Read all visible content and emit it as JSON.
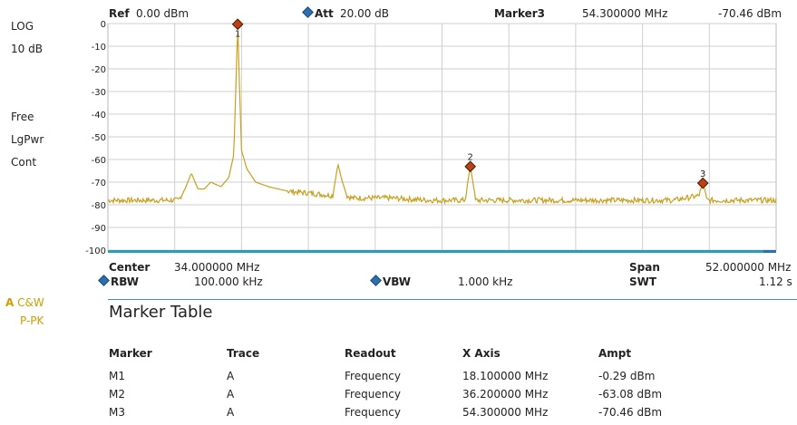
{
  "header": {
    "ref_label": "Ref",
    "ref_value": "0.00 dBm",
    "att_label": "Att",
    "att_value": "20.00 dB",
    "marker_label": "Marker3",
    "marker_freq": "54.300000 MHz",
    "marker_ampt": "-70.46 dBm"
  },
  "left_panel": {
    "scale": "LOG",
    "div": "10 dB",
    "sweep": "Free",
    "detector": "LgPwr",
    "mode": "Cont",
    "trace_letter": "A",
    "trace_mode": "C&W",
    "trace_detector": "P-PK"
  },
  "footer": {
    "center_label": "Center",
    "center_value": "34.000000 MHz",
    "span_label": "Span",
    "span_value": "52.000000 MHz",
    "rbw_label": "RBW",
    "rbw_value": "100.000 kHz",
    "vbw_label": "VBW",
    "vbw_value": "1.000 kHz",
    "swt_label": "SWT",
    "swt_value": "1.12 s"
  },
  "marker_table": {
    "title": "Marker Table",
    "columns": [
      "Marker",
      "Trace",
      "Readout",
      "X Axis",
      "Ampt"
    ],
    "rows": [
      [
        "M1",
        "A",
        "Frequency",
        "18.100000 MHz",
        "-0.29 dBm"
      ],
      [
        "M2",
        "A",
        "Frequency",
        "36.200000 MHz",
        "-63.08 dBm"
      ],
      [
        "M3",
        "A",
        "Frequency",
        "54.300000 MHz",
        "-70.46 dBm"
      ]
    ]
  },
  "colors": {
    "trace": "#c8a020",
    "marker_fill": "#c04010",
    "grid": "#cfcfcf",
    "accent": "#3a8fd0"
  },
  "chart_data": {
    "type": "line",
    "x_range_mhz": [
      8,
      60
    ],
    "ylim": [
      -100,
      0
    ],
    "y_ticks": [
      "0",
      "-10",
      "-20",
      "-30",
      "-40",
      "-50",
      "-60",
      "-70",
      "-80",
      "-90",
      "-100"
    ],
    "grid": true,
    "noise_floor_dbm": -78,
    "series": [
      {
        "x": [
          8,
          11,
          13.5,
          14,
          14.5,
          15,
          15.5,
          16,
          16.8,
          17.4,
          17.8,
          18.0,
          18.1,
          18.2,
          18.4,
          18.8,
          19.5,
          20.5,
          22,
          24,
          25.5,
          25.9,
          26.2,
          26.6,
          27,
          30,
          33,
          35.8,
          36.0,
          36.2,
          36.4,
          36.6,
          40,
          44,
          48,
          52,
          54.0,
          54.2,
          54.3,
          54.4,
          54.6,
          57,
          60
        ],
        "y": [
          -78,
          -78,
          -78,
          -73,
          -66,
          -73,
          -73,
          -70,
          -72,
          -68,
          -58,
          -20,
          -0.29,
          -20,
          -56,
          -64,
          -70,
          -72,
          -74,
          -75,
          -76,
          -62,
          -69,
          -76,
          -77,
          -77,
          -78,
          -78,
          -70,
          -63.08,
          -70,
          -78,
          -78,
          -78,
          -78,
          -78,
          -76,
          -72,
          -70.46,
          -72,
          -78,
          -78,
          -78
        ]
      }
    ],
    "markers": [
      {
        "label": "1",
        "x": 18.1,
        "y": -0.29
      },
      {
        "label": "2",
        "x": 36.2,
        "y": -63.08
      },
      {
        "label": "3",
        "x": 54.3,
        "y": -70.46
      }
    ]
  }
}
